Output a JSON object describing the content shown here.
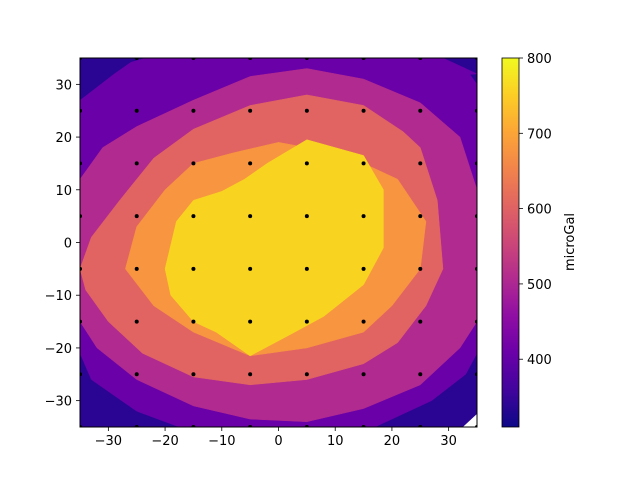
{
  "chart_data": {
    "type": "heatmap",
    "subtype": "filled-contour",
    "title": "",
    "xlabel": "",
    "ylabel": "",
    "xlim": [
      -35,
      35
    ],
    "ylim": [
      -35,
      35
    ],
    "xticks": [
      -30,
      -20,
      -10,
      0,
      10,
      20,
      30
    ],
    "yticks": [
      -30,
      -20,
      -10,
      0,
      10,
      20,
      30
    ],
    "xtick_labels": [
      "−30",
      "−20",
      "−10",
      "0",
      "10",
      "20",
      "30"
    ],
    "ytick_labels": [
      "−30",
      "−20",
      "−10",
      "0",
      "10",
      "20",
      "30"
    ],
    "grid": false,
    "colormap": "plasma",
    "colorbar": {
      "label": "microGal",
      "range": [
        310,
        800
      ],
      "ticks": [
        400,
        500,
        600,
        700,
        800
      ],
      "tick_labels": [
        "400",
        "500",
        "600",
        "700",
        "800"
      ]
    },
    "levels": [
      {
        "min": 310,
        "max": 360,
        "color": "#2a0593"
      },
      {
        "min": 360,
        "max": 450,
        "color": "#6a00a8"
      },
      {
        "min": 450,
        "max": 550,
        "color": "#b12a90"
      },
      {
        "min": 550,
        "max": 650,
        "color": "#e16462"
      },
      {
        "min": 650,
        "max": 750,
        "color": "#f89540"
      },
      {
        "min": 750,
        "max": 800,
        "color": "#f8d421"
      }
    ],
    "stations": {
      "x": [
        -35,
        -25,
        -15,
        -5,
        5,
        15,
        25,
        35
      ],
      "y": [
        -35,
        -25,
        -15,
        -5,
        5,
        15,
        25,
        35
      ],
      "marker_color": "#000000"
    }
  }
}
